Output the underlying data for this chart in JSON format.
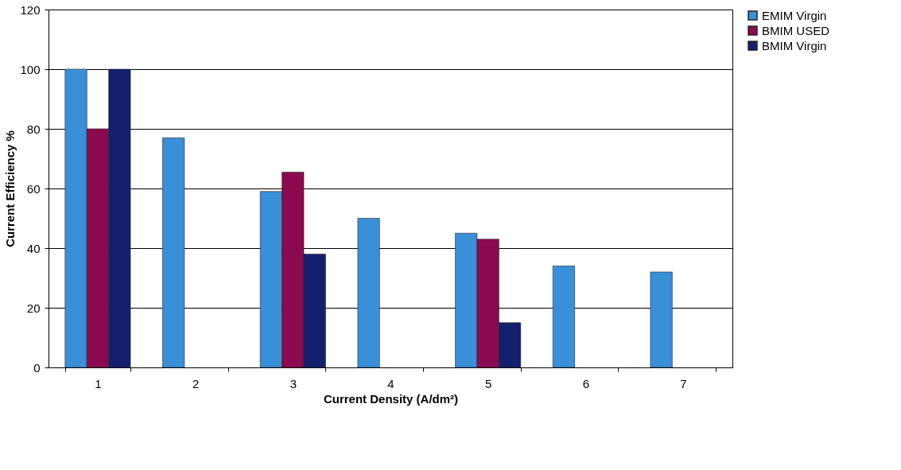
{
  "chart_data": {
    "type": "bar",
    "xlabel": "Current Density (A/dm²)",
    "ylabel": "Current Efficiency %",
    "categories": [
      "1",
      "2",
      "3",
      "4",
      "5",
      "6",
      "7"
    ],
    "series": [
      {
        "name": "EMIM Virgin",
        "color": "#3a8fd9",
        "values": [
          100,
          77,
          59,
          50,
          45,
          34,
          32
        ]
      },
      {
        "name": "BMIM USED",
        "color": "#8b0a4f",
        "values": [
          80,
          null,
          65.5,
          null,
          43,
          null,
          null
        ]
      },
      {
        "name": "BMIM Virgin",
        "color": "#14206e",
        "values": [
          100,
          null,
          38,
          null,
          15,
          null,
          null
        ]
      }
    ],
    "ylim": [
      0,
      120
    ],
    "yticks": [
      0,
      20,
      40,
      60,
      80,
      100,
      120
    ],
    "grid": "y",
    "legend": "right"
  }
}
